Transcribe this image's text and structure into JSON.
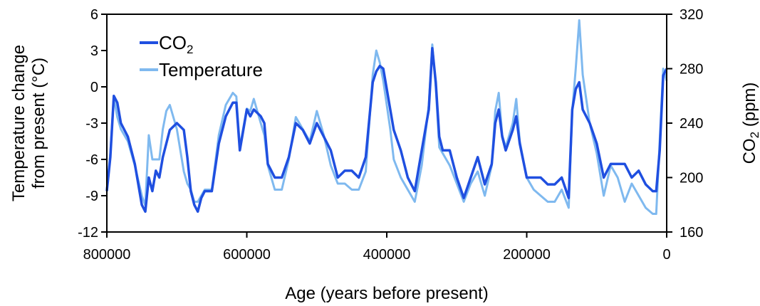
{
  "chart_data": {
    "type": "line",
    "xlabel": "Age (years before present)",
    "ylabel_left_line1": "Temperature change",
    "ylabel_left_line2": "from present (°C)",
    "ylabel_right": "CO2 (ppm)",
    "xlim": [
      800000,
      0
    ],
    "ylim_left": [
      -12,
      6
    ],
    "ylim_right": [
      160,
      320
    ],
    "x_ticks": [
      "800000",
      "600000",
      "400000",
      "200000",
      "0"
    ],
    "y_ticks_left": [
      "6",
      "3",
      "0",
      "-3",
      "-6",
      "-9",
      "-12"
    ],
    "y_ticks_right": [
      "320",
      "280",
      "240",
      "200",
      "160"
    ],
    "grid": false,
    "legend_position": "top-left",
    "series": [
      {
        "name": "CO2",
        "axis": "right",
        "color": "#1f4fe0",
        "x": [
          800000,
          795000,
          790000,
          785000,
          780000,
          770000,
          760000,
          750000,
          745000,
          740000,
          735000,
          730000,
          725000,
          720000,
          715000,
          710000,
          700000,
          690000,
          685000,
          680000,
          675000,
          670000,
          665000,
          660000,
          650000,
          640000,
          630000,
          620000,
          615000,
          610000,
          600000,
          595000,
          590000,
          580000,
          575000,
          570000,
          560000,
          550000,
          540000,
          530000,
          520000,
          510000,
          500000,
          490000,
          480000,
          470000,
          460000,
          450000,
          440000,
          430000,
          420000,
          415000,
          410000,
          405000,
          400000,
          395000,
          390000,
          380000,
          370000,
          360000,
          350000,
          340000,
          335000,
          330000,
          325000,
          320000,
          310000,
          300000,
          290000,
          280000,
          270000,
          260000,
          250000,
          245000,
          240000,
          235000,
          230000,
          220000,
          215000,
          210000,
          200000,
          190000,
          180000,
          170000,
          160000,
          150000,
          140000,
          135000,
          130000,
          125000,
          120000,
          110000,
          100000,
          90000,
          80000,
          70000,
          60000,
          50000,
          40000,
          30000,
          20000,
          15000,
          10000,
          5000,
          0
        ],
        "y": [
          190,
          215,
          260,
          255,
          240,
          230,
          210,
          180,
          175,
          200,
          190,
          205,
          200,
          215,
          225,
          235,
          240,
          235,
          215,
          190,
          180,
          175,
          185,
          190,
          190,
          225,
          245,
          255,
          255,
          220,
          250,
          245,
          250,
          245,
          240,
          210,
          200,
          200,
          215,
          240,
          235,
          225,
          240,
          230,
          220,
          200,
          205,
          205,
          200,
          215,
          270,
          278,
          282,
          280,
          265,
          250,
          235,
          220,
          200,
          190,
          220,
          250,
          295,
          270,
          230,
          220,
          220,
          200,
          185,
          200,
          215,
          195,
          210,
          240,
          250,
          230,
          220,
          235,
          245,
          225,
          200,
          200,
          200,
          195,
          195,
          200,
          185,
          250,
          265,
          270,
          250,
          240,
          225,
          200,
          210,
          210,
          210,
          200,
          205,
          195,
          190,
          190,
          220,
          275,
          280
        ]
      },
      {
        "name": "Temperature",
        "axis": "left",
        "color": "#7fb9ef",
        "x": [
          800000,
          795000,
          790000,
          785000,
          780000,
          770000,
          760000,
          750000,
          745000,
          740000,
          735000,
          730000,
          725000,
          720000,
          715000,
          710000,
          700000,
          690000,
          685000,
          680000,
          675000,
          670000,
          665000,
          660000,
          650000,
          640000,
          630000,
          620000,
          615000,
          610000,
          600000,
          595000,
          590000,
          580000,
          575000,
          570000,
          560000,
          550000,
          540000,
          530000,
          520000,
          510000,
          500000,
          490000,
          480000,
          470000,
          460000,
          450000,
          440000,
          430000,
          420000,
          415000,
          410000,
          405000,
          400000,
          395000,
          390000,
          380000,
          370000,
          360000,
          350000,
          340000,
          335000,
          330000,
          325000,
          320000,
          310000,
          300000,
          290000,
          280000,
          270000,
          260000,
          250000,
          245000,
          240000,
          235000,
          230000,
          220000,
          215000,
          210000,
          200000,
          190000,
          180000,
          170000,
          160000,
          150000,
          140000,
          135000,
          130000,
          125000,
          120000,
          110000,
          100000,
          90000,
          80000,
          70000,
          60000,
          50000,
          40000,
          30000,
          20000,
          15000,
          10000,
          5000,
          0
        ],
        "y": [
          -8.5,
          -5.5,
          -0.8,
          -2.5,
          -3.5,
          -4.5,
          -6.5,
          -9.0,
          -9.8,
          -4.0,
          -6.0,
          -6.0,
          -6.0,
          -3.5,
          -2.0,
          -1.5,
          -3.5,
          -7.0,
          -8.0,
          -8.5,
          -9.5,
          -9.5,
          -9.0,
          -8.5,
          -8.5,
          -4.0,
          -1.5,
          -0.5,
          -0.8,
          -5.0,
          -1.8,
          -2.0,
          -1.0,
          -3.0,
          -4.0,
          -6.5,
          -8.5,
          -8.5,
          -6.0,
          -2.5,
          -3.5,
          -4.5,
          -2.0,
          -4.0,
          -6.5,
          -8.0,
          -8.0,
          -8.5,
          -8.5,
          -7.0,
          1.0,
          3.0,
          2.0,
          0.5,
          -1.5,
          -3.5,
          -6.0,
          -7.5,
          -8.5,
          -9.5,
          -6.5,
          -1.5,
          3.5,
          0.0,
          -5.0,
          -5.5,
          -6.5,
          -8.0,
          -9.5,
          -8.0,
          -7.0,
          -9.0,
          -6.5,
          -2.0,
          -0.5,
          -4.0,
          -5.0,
          -3.0,
          -1.0,
          -4.5,
          -7.5,
          -8.5,
          -9.0,
          -9.5,
          -9.5,
          -8.5,
          -10.0,
          -2.0,
          1.5,
          5.5,
          1.0,
          -3.0,
          -5.5,
          -9.0,
          -6.5,
          -7.5,
          -9.5,
          -8.0,
          -9.0,
          -10.0,
          -10.5,
          -10.5,
          -4.5,
          1.5,
          0.5
        ]
      }
    ]
  }
}
